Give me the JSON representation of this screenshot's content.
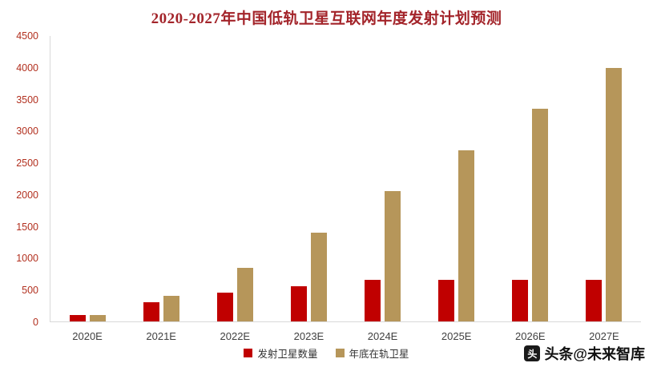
{
  "title": "2020-2027年中国低轨卫星互联网年度发射计划预测",
  "watermark": {
    "label": "头条@未来智库",
    "logo_glyph": "头"
  },
  "colors": {
    "series_launch": "#c00000",
    "series_in_orbit": "#b6965a",
    "title_text": "#a3242a",
    "y_tick_text": "#b2301f",
    "axis_line": "#d9d9d9"
  },
  "chart_data": {
    "type": "bar",
    "title": "2020-2027年中国低轨卫星互联网年度发射计划预测",
    "categories": [
      "2020E",
      "2021E",
      "2022E",
      "2023E",
      "2024E",
      "2025E",
      "2026E",
      "2027E"
    ],
    "series": [
      {
        "name": "发射卫星数量",
        "color": "#c00000",
        "values": [
          100,
          300,
          450,
          550,
          650,
          650,
          650,
          650
        ]
      },
      {
        "name": "年底在轨卫星",
        "color": "#b6965a",
        "values": [
          100,
          400,
          850,
          1400,
          2050,
          2700,
          3350,
          4000
        ]
      }
    ],
    "xlabel": "",
    "ylabel": "",
    "ylim": [
      0,
      4500
    ],
    "ytick_step": 500,
    "ytick_labels": [
      "0",
      "500",
      "1000",
      "1500",
      "2000",
      "2500",
      "3000",
      "3500",
      "4000",
      "4500"
    ],
    "grid": false,
    "legend_position": "bottom"
  }
}
